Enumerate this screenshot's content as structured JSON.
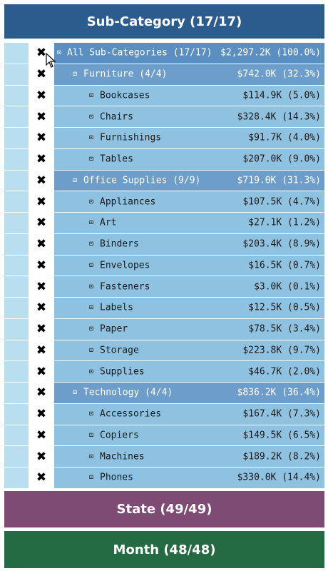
{
  "headers": {
    "subcategory": "Sub-Category (17/17)",
    "state": "State (49/49)",
    "month": "Month (48/48)"
  },
  "icons": {
    "exclude": "✖",
    "expand": "⊡"
  },
  "rows": [
    {
      "level": "top",
      "label": "All Sub-Categories (17/17)",
      "value": "$2,297.2K (100.0%)"
    },
    {
      "level": "group",
      "label": "Furniture (4/4)",
      "value": "$742.0K (32.3%)"
    },
    {
      "level": "item",
      "label": "Bookcases",
      "value": "$114.9K (5.0%)"
    },
    {
      "level": "item",
      "label": "Chairs",
      "value": "$328.4K (14.3%)"
    },
    {
      "level": "item",
      "label": "Furnishings",
      "value": "$91.7K (4.0%)"
    },
    {
      "level": "item",
      "label": "Tables",
      "value": "$207.0K (9.0%)"
    },
    {
      "level": "group",
      "label": "Office Supplies (9/9)",
      "value": "$719.0K (31.3%)"
    },
    {
      "level": "item",
      "label": "Appliances",
      "value": "$107.5K (4.7%)"
    },
    {
      "level": "item",
      "label": "Art",
      "value": "$27.1K (1.2%)"
    },
    {
      "level": "item",
      "label": "Binders",
      "value": "$203.4K (8.9%)"
    },
    {
      "level": "item",
      "label": "Envelopes",
      "value": "$16.5K (0.7%)"
    },
    {
      "level": "item",
      "label": "Fasteners",
      "value": "$3.0K (0.1%)"
    },
    {
      "level": "item",
      "label": "Labels",
      "value": "$12.5K (0.5%)"
    },
    {
      "level": "item",
      "label": "Paper",
      "value": "$78.5K (3.4%)"
    },
    {
      "level": "item",
      "label": "Storage",
      "value": "$223.8K (9.7%)"
    },
    {
      "level": "item",
      "label": "Supplies",
      "value": "$46.7K (2.0%)"
    },
    {
      "level": "group",
      "label": "Technology (4/4)",
      "value": "$836.2K (36.4%)"
    },
    {
      "level": "item",
      "label": "Accessories",
      "value": "$167.4K (7.3%)"
    },
    {
      "level": "item",
      "label": "Copiers",
      "value": "$149.5K (6.5%)"
    },
    {
      "level": "item",
      "label": "Machines",
      "value": "$189.2K (8.2%)"
    },
    {
      "level": "item",
      "label": "Phones",
      "value": "$330.0K (14.4%)"
    }
  ]
}
